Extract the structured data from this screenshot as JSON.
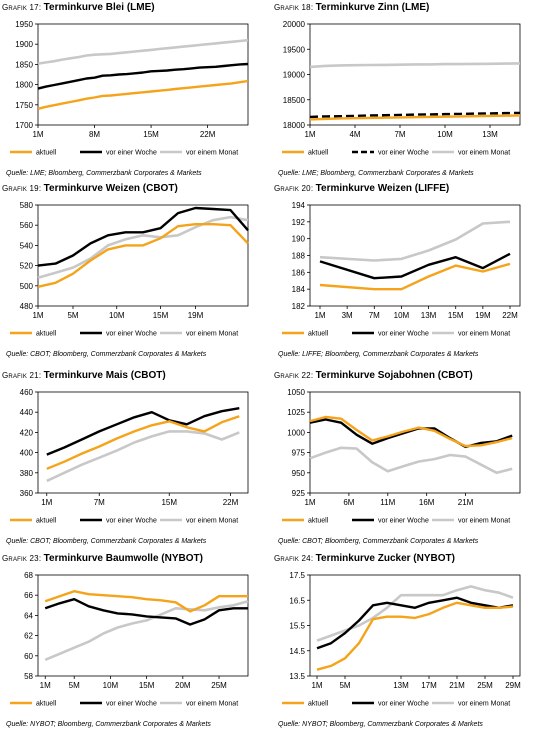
{
  "legend": {
    "aktuell": "aktuell",
    "woche": "vor einer Woche",
    "monat": "vor einem Monat"
  },
  "colors": {
    "aktuell": "#f5a31a",
    "woche": "#000000",
    "monat": "#c8c8c8"
  },
  "charts": [
    {
      "id": "g17",
      "heading": {
        "prefix": "Grafik 17: ",
        "title": "Terminkurve Blei (LME)"
      },
      "source": "Quelle: LME; Bloomberg, Commerzbank Corporates & Markets",
      "chart_data": {
        "type": "line",
        "x": [
          1,
          2,
          3,
          4,
          5,
          6,
          7,
          8,
          9,
          10,
          11,
          12,
          13,
          14,
          15,
          16,
          17,
          18,
          19,
          20,
          21,
          22,
          23,
          24,
          25,
          26,
          27
        ],
        "xlim": [
          1,
          27
        ],
        "xticks": [
          {
            "v": 1,
            "label": "1M"
          },
          {
            "v": 8,
            "label": "8M"
          },
          {
            "v": 15,
            "label": "15M"
          },
          {
            "v": 22,
            "label": "22M"
          }
        ],
        "ylim": [
          1700,
          1950
        ],
        "yticks": [
          1700,
          1750,
          1800,
          1850,
          1900,
          1950
        ],
        "series": [
          {
            "key": "monat",
            "dashed": false,
            "values": [
              1852,
              1855,
              1858,
              1862,
              1865,
              1868,
              1872,
              1874,
              1875,
              1876,
              1878,
              1880,
              1882,
              1884,
              1886,
              1888,
              1890,
              1892,
              1894,
              1896,
              1898,
              1900,
              1902,
              1904,
              1906,
              1908,
              1910
            ]
          },
          {
            "key": "woche",
            "dashed": false,
            "values": [
              1790,
              1795,
              1799,
              1803,
              1807,
              1811,
              1815,
              1817,
              1822,
              1823,
              1825,
              1826,
              1828,
              1830,
              1833,
              1834,
              1835,
              1837,
              1838,
              1840,
              1842,
              1843,
              1844,
              1846,
              1848,
              1850,
              1851
            ]
          },
          {
            "key": "aktuell",
            "dashed": false,
            "values": [
              1740,
              1745,
              1749,
              1753,
              1757,
              1761,
              1765,
              1768,
              1772,
              1773,
              1775,
              1777,
              1779,
              1781,
              1783,
              1785,
              1787,
              1789,
              1791,
              1793,
              1795,
              1797,
              1799,
              1801,
              1803,
              1806,
              1809
            ]
          }
        ]
      }
    },
    {
      "id": "g18",
      "heading": {
        "prefix": "Grafik 18: ",
        "title": "Terminkurve Zinn (LME)"
      },
      "source": "Quelle: LME; Bloomberg, Commerzbank Corporates & Markets",
      "chart_data": {
        "type": "line",
        "x": [
          1,
          2,
          3,
          4,
          5,
          6,
          7,
          8,
          9,
          10,
          11,
          12,
          13,
          14,
          15
        ],
        "xlim": [
          1,
          15
        ],
        "xticks": [
          {
            "v": 1,
            "label": "1M"
          },
          {
            "v": 4,
            "label": "4M"
          },
          {
            "v": 7,
            "label": "7M"
          },
          {
            "v": 10,
            "label": "10M"
          },
          {
            "v": 13,
            "label": "13M"
          }
        ],
        "ylim": [
          18000,
          20000
        ],
        "yticks": [
          18000,
          18500,
          19000,
          19500,
          20000
        ],
        "series": [
          {
            "key": "monat",
            "dashed": false,
            "values": [
              19150,
              19170,
              19180,
              19185,
              19188,
              19190,
              19195,
              19200,
              19200,
              19205,
              19205,
              19210,
              19212,
              19215,
              19220
            ]
          },
          {
            "key": "woche",
            "dashed": true,
            "values": [
              18160,
              18170,
              18175,
              18180,
              18190,
              18195,
              18200,
              18205,
              18210,
              18215,
              18220,
              18225,
              18230,
              18235,
              18240
            ]
          },
          {
            "key": "aktuell",
            "dashed": false,
            "values": [
              18110,
              18120,
              18130,
              18135,
              18140,
              18145,
              18150,
              18155,
              18160,
              18165,
              18170,
              18175,
              18180,
              18185,
              18190
            ]
          }
        ]
      }
    },
    {
      "id": "g19",
      "heading": {
        "prefix": "Grafik 19: ",
        "title": "Terminkurve Weizen (CBOT)"
      },
      "source": "Quelle: CBOT; Bloomberg, Commerzbank Corporates & Markets",
      "chart_data": {
        "type": "line",
        "x": [
          1,
          3,
          5,
          7,
          9,
          11,
          13,
          15,
          17,
          19,
          21,
          23,
          25
        ],
        "xlim": [
          1,
          25
        ],
        "xticks": [
          {
            "v": 1,
            "label": "1M"
          },
          {
            "v": 5,
            "label": "5M"
          },
          {
            "v": 10,
            "label": "10M"
          },
          {
            "v": 15,
            "label": "15M"
          },
          {
            "v": 19,
            "label": "19M"
          }
        ],
        "ylim": [
          480,
          580
        ],
        "yticks": [
          480,
          500,
          520,
          540,
          560,
          580
        ],
        "series": [
          {
            "key": "monat",
            "dashed": false,
            "values": [
              508,
              513,
              518,
              527,
              540,
              546,
              550,
              548,
              550,
              558,
              565,
              568,
              565
            ]
          },
          {
            "key": "woche",
            "dashed": false,
            "values": [
              520,
              522,
              530,
              542,
              550,
              553,
              553,
              557,
              572,
              577,
              576,
              575,
              555
            ]
          },
          {
            "key": "aktuell",
            "dashed": false,
            "values": [
              499,
              503,
              512,
              525,
              536,
              540,
              540,
              547,
              559,
              561,
              561,
              560,
              542
            ]
          }
        ]
      }
    },
    {
      "id": "g20",
      "heading": {
        "prefix": "Grafik 20: ",
        "title": "Terminkurve Weizen (LIFFE)"
      },
      "source": "Quelle: LIFFE; Bloomberg, Commerzbank Corporates & Markets",
      "chart_data": {
        "type": "line",
        "x": [
          1,
          7,
          10,
          13,
          15,
          19,
          22
        ],
        "xlim": [
          1,
          23
        ],
        "xticks": [
          {
            "v": 1,
            "label": "1M"
          },
          {
            "v": 3,
            "label": "3M"
          },
          {
            "v": 7,
            "label": "7M"
          },
          {
            "v": 10,
            "label": "10M"
          },
          {
            "v": 13,
            "label": "13M"
          },
          {
            "v": 15,
            "label": "15M"
          },
          {
            "v": 19,
            "label": "19M"
          },
          {
            "v": 22,
            "label": "22M"
          }
        ],
        "xticks_spaced": true,
        "ylim": [
          182,
          194
        ],
        "yticks": [
          182,
          184,
          186,
          188,
          190,
          192,
          194
        ],
        "series": [
          {
            "key": "monat",
            "dashed": false,
            "values": [
              187.8,
              187.4,
              187.6,
              188.6,
              189.9,
              191.8,
              192.0
            ]
          },
          {
            "key": "woche",
            "dashed": false,
            "values": [
              187.3,
              185.3,
              185.5,
              186.9,
              187.8,
              186.5,
              188.2
            ]
          },
          {
            "key": "aktuell",
            "dashed": false,
            "values": [
              184.5,
              184.0,
              184.0,
              185.5,
              186.8,
              186.1,
              187.0
            ]
          }
        ]
      }
    },
    {
      "id": "g21",
      "heading": {
        "prefix": "Grafik 21: ",
        "title": "Terminkurve Mais (CBOT)"
      },
      "source": "Quelle: CBOT; Bloomberg, Commerzbank Corporates & Markets",
      "chart_data": {
        "type": "line",
        "x": [
          1,
          3,
          5,
          7,
          9,
          11,
          13,
          15,
          17,
          19,
          21,
          23
        ],
        "xlim": [
          0,
          24
        ],
        "xticks": [
          {
            "v": 1,
            "label": "1M"
          },
          {
            "v": 7,
            "label": "7M"
          },
          {
            "v": 15,
            "label": "15M"
          },
          {
            "v": 22,
            "label": "22M"
          }
        ],
        "ylim": [
          360,
          460
        ],
        "yticks": [
          360,
          380,
          400,
          420,
          440,
          460
        ],
        "series": [
          {
            "key": "monat",
            "dashed": false,
            "values": [
              372,
              380,
              388,
              395,
              402,
              410,
              416,
              421,
              421,
              419,
              413,
              420
            ]
          },
          {
            "key": "woche",
            "dashed": false,
            "values": [
              398,
              405,
              413,
              421,
              428,
              435,
              440,
              432,
              428,
              436,
              441,
              444
            ]
          },
          {
            "key": "aktuell",
            "dashed": false,
            "values": [
              384,
              391,
              399,
              406,
              414,
              421,
              427,
              431,
              425,
              421,
              430,
              436
            ]
          }
        ]
      }
    },
    {
      "id": "g22",
      "heading": {
        "prefix": "Grafik 22: ",
        "title": "Terminkurve Sojabohnen (CBOT)"
      },
      "source": "Quelle: CBOT; Bloomberg, Commerzbank Corporates & Markets",
      "chart_data": {
        "type": "line",
        "x": [
          1,
          3,
          5,
          7,
          9,
          11,
          13,
          15,
          17,
          19,
          21,
          23,
          25,
          27
        ],
        "xlim": [
          1,
          28
        ],
        "xticks": [
          {
            "v": 1,
            "label": "1M"
          },
          {
            "v": 6,
            "label": "6M"
          },
          {
            "v": 11,
            "label": "11M"
          },
          {
            "v": 16,
            "label": "16M"
          },
          {
            "v": 21,
            "label": "21M"
          }
        ],
        "ylim": [
          925,
          1050
        ],
        "yticks": [
          925,
          950,
          975,
          1000,
          1025,
          1050
        ],
        "series": [
          {
            "key": "monat",
            "dashed": false,
            "values": [
              968,
              975,
              981,
              980,
              963,
              952,
              958,
              964,
              967,
              972,
              970,
              960,
              950,
              955
            ]
          },
          {
            "key": "woche",
            "dashed": false,
            "values": [
              1012,
              1016,
              1012,
              997,
              986,
              993,
              999,
              1005,
              1005,
              993,
              982,
              987,
              989,
              996
            ]
          },
          {
            "key": "aktuell",
            "dashed": false,
            "values": [
              1014,
              1019,
              1017,
              1003,
              990,
              995,
              1001,
              1006,
              1002,
              992,
              983,
              984,
              988,
              993
            ]
          }
        ]
      }
    },
    {
      "id": "g23",
      "heading": {
        "prefix": "Grafik 23: ",
        "title": "Terminkurve Baumwolle (NYBOT)"
      },
      "source": "Quelle: NYBOT; Bloomberg, Commerzbank Corporates & Markets",
      "chart_data": {
        "type": "line",
        "x": [
          1,
          3,
          5,
          7,
          9,
          11,
          13,
          15,
          17,
          19,
          21,
          23,
          25,
          27,
          29
        ],
        "xlim": [
          0,
          29
        ],
        "xticks": [
          {
            "v": 1,
            "label": "1M"
          },
          {
            "v": 5,
            "label": "5M"
          },
          {
            "v": 10,
            "label": "10M"
          },
          {
            "v": 15,
            "label": "15M"
          },
          {
            "v": 20,
            "label": "20M"
          },
          {
            "v": 25,
            "label": "25M"
          }
        ],
        "ylim": [
          58,
          68
        ],
        "yticks": [
          58,
          60,
          62,
          64,
          66,
          68
        ],
        "series": [
          {
            "key": "monat",
            "dashed": false,
            "values": [
              59.6,
              60.2,
              60.8,
              61.4,
              62.2,
              62.8,
              63.2,
              63.5,
              64.1,
              64.7,
              64.6,
              64.5,
              64.8,
              65.0,
              65.4
            ]
          },
          {
            "key": "woche",
            "dashed": false,
            "values": [
              64.7,
              65.2,
              65.6,
              64.9,
              64.5,
              64.2,
              64.1,
              63.9,
              63.8,
              63.7,
              63.1,
              63.6,
              64.5,
              64.7,
              64.7
            ]
          },
          {
            "key": "aktuell",
            "dashed": false,
            "values": [
              65.4,
              65.9,
              66.4,
              66.1,
              66.0,
              65.9,
              65.8,
              65.6,
              65.5,
              65.3,
              64.4,
              65.0,
              65.9,
              65.9,
              65.9
            ]
          }
        ]
      }
    },
    {
      "id": "g24",
      "heading": {
        "prefix": "Grafik 24: ",
        "title": "Terminkurve Zucker (NYBOT)"
      },
      "source": "Quelle: NYBOT; Bloomberg, Commerzbank Corporates & Markets",
      "chart_data": {
        "type": "line",
        "x": [
          1,
          3,
          5,
          7,
          9,
          11,
          13,
          15,
          17,
          19,
          21,
          23,
          25,
          27,
          29
        ],
        "xlim": [
          0,
          30
        ],
        "xticks": [
          {
            "v": 1,
            "label": "1M"
          },
          {
            "v": 5,
            "label": "5M"
          },
          {
            "v": 13,
            "label": "13M"
          },
          {
            "v": 17,
            "label": "17M"
          },
          {
            "v": 21,
            "label": "21M"
          },
          {
            "v": 25,
            "label": "25M"
          },
          {
            "v": 29,
            "label": "29M"
          }
        ],
        "ylim": [
          13.5,
          17.5
        ],
        "yticks": [
          13.5,
          14.5,
          15.5,
          16.5,
          17.5
        ],
        "series": [
          {
            "key": "monat",
            "dashed": false,
            "values": [
              14.9,
              15.1,
              15.3,
              15.5,
              15.8,
              16.2,
              16.7,
              16.7,
              16.7,
              16.7,
              16.9,
              17.05,
              16.9,
              16.8,
              16.6
            ]
          },
          {
            "key": "woche",
            "dashed": false,
            "values": [
              14.6,
              14.8,
              15.2,
              15.7,
              16.3,
              16.4,
              16.3,
              16.2,
              16.4,
              16.5,
              16.6,
              16.4,
              16.3,
              16.2,
              16.3
            ]
          },
          {
            "key": "aktuell",
            "dashed": false,
            "values": [
              13.75,
              13.9,
              14.2,
              14.8,
              15.75,
              15.85,
              15.85,
              15.8,
              15.95,
              16.2,
              16.4,
              16.3,
              16.2,
              16.2,
              16.25
            ]
          }
        ]
      }
    }
  ]
}
